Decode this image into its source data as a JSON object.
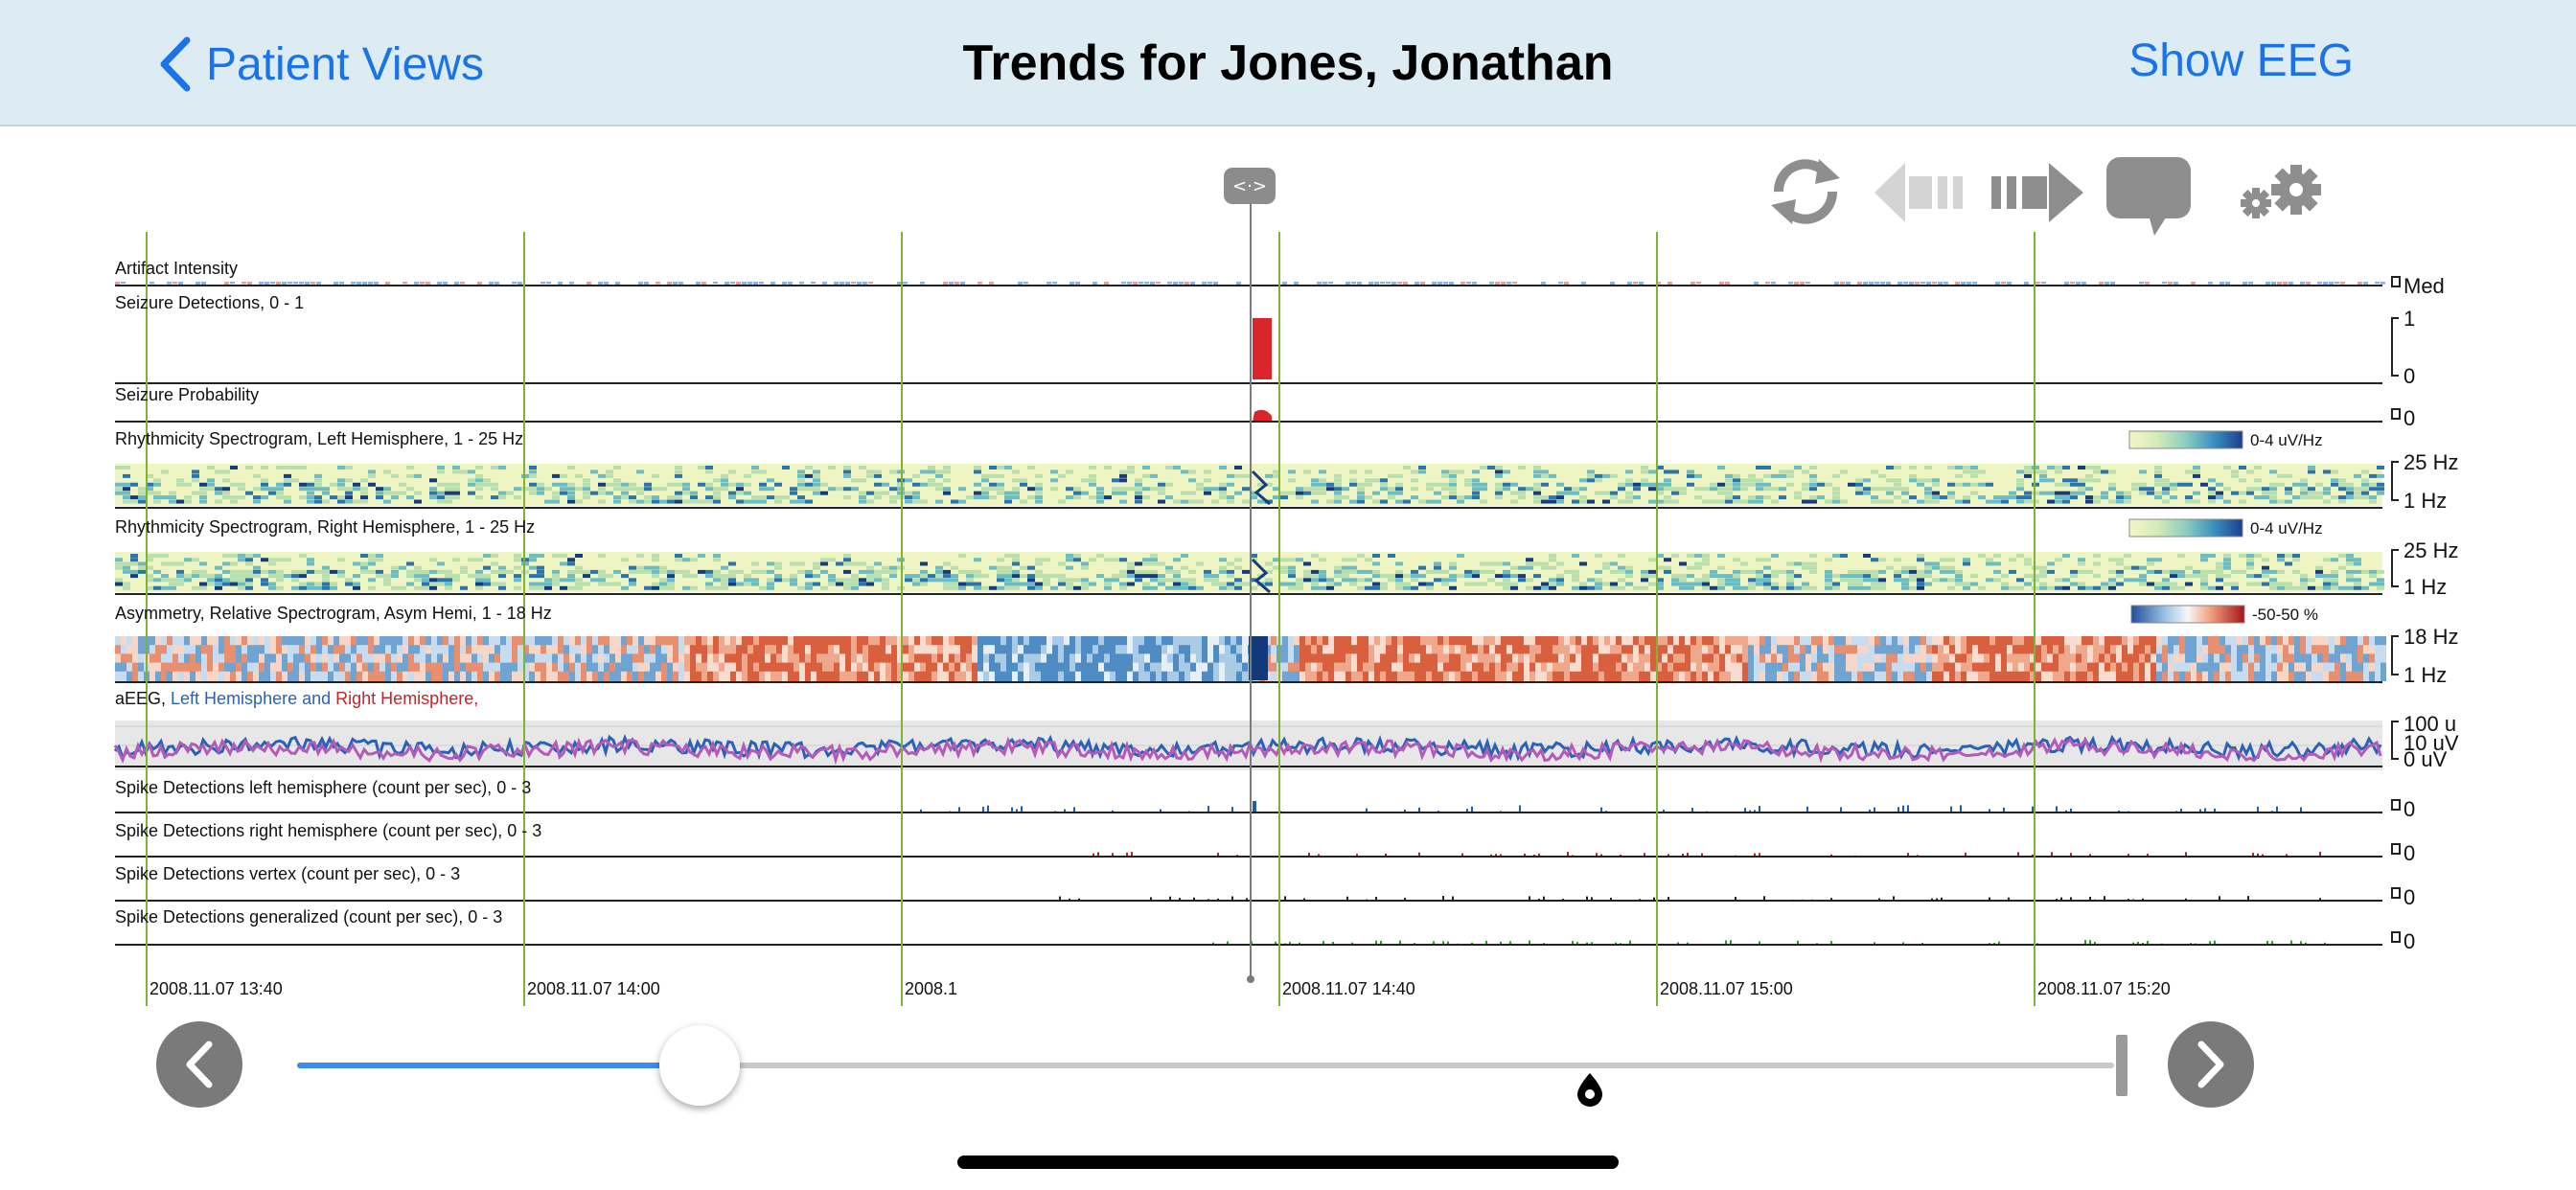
{
  "nav": {
    "back_label": "Patient Views",
    "title": "Trends for Jones, Jonathan",
    "right_label": "Show EEG"
  },
  "toolbar": {
    "icons": [
      "refresh-icon",
      "step-back-icon",
      "step-forward-icon",
      "comment-icon",
      "settings-icon"
    ],
    "drag_handle_glyph": "<·>"
  },
  "channels": [
    {
      "label": "Artifact Intensity",
      "axis": [
        "Med"
      ],
      "kind": "artifact"
    },
    {
      "label": "Seizure Detections, 0 - 1",
      "axis": [
        "1",
        "0"
      ],
      "kind": "detect"
    },
    {
      "label": "Seizure Probability",
      "axis": [
        "0"
      ],
      "kind": "prob"
    },
    {
      "label": "Rhythmicity Spectrogram, Left Hemisphere, 1 - 25 Hz",
      "axis": [
        "25 Hz",
        "1 Hz"
      ],
      "kind": "spec",
      "colorbar": "0-4 uV/Hz"
    },
    {
      "label": "Rhythmicity Spectrogram, Right Hemisphere, 1 - 25 Hz",
      "axis": [
        "25 Hz",
        "1 Hz"
      ],
      "kind": "spec",
      "colorbar": "0-4 uV/Hz"
    },
    {
      "label": "Asymmetry, Relative Spectrogram, Asym Hemi, 1 - 18 Hz",
      "axis": [
        "18 Hz",
        "1 Hz"
      ],
      "kind": "asym",
      "colorbar": "-50-50 %"
    },
    {
      "label": "aEEG, ",
      "label_parts": [
        "Left Hemisphere",
        " and ",
        "Right Hemisphere,"
      ],
      "axis": [
        "100 u",
        "10 uV",
        "0 uV"
      ],
      "kind": "aeeg"
    },
    {
      "label": "Spike Detections left hemisphere (count per sec), 0 - 3",
      "axis": [
        "0"
      ],
      "kind": "spike",
      "color": "#1f5fa8"
    },
    {
      "label": "Spike Detections right hemisphere (count per sec), 0 - 3",
      "axis": [
        "0"
      ],
      "kind": "spike",
      "color": "#b0262b"
    },
    {
      "label": "Spike Detections vertex (count per sec), 0 - 3",
      "axis": [
        "0"
      ],
      "kind": "spike",
      "color": "#222222"
    },
    {
      "label": "Spike Detections generalized (count per sec), 0 - 3",
      "axis": [
        "0"
      ],
      "kind": "spike",
      "color": "#2f9a2f"
    }
  ],
  "time_labels": [
    "2008.11.07 13:40",
    "2008.11.07 14:00",
    "2008.1",
    "2008.11.07 14:40",
    "2008.11.07 15:00",
    "2008.11.07 15:20"
  ],
  "colors": {
    "accent": "#1a73e8",
    "navbar_bg": "#ddecf3",
    "seizure": "#d9252b",
    "left_hemi": "#2a62b8",
    "right_hemi": "#c0262b",
    "grid_green": "#7fb239",
    "aeeg_trace": "#b45ab8"
  },
  "slider": {
    "position_fraction": 0.1
  }
}
